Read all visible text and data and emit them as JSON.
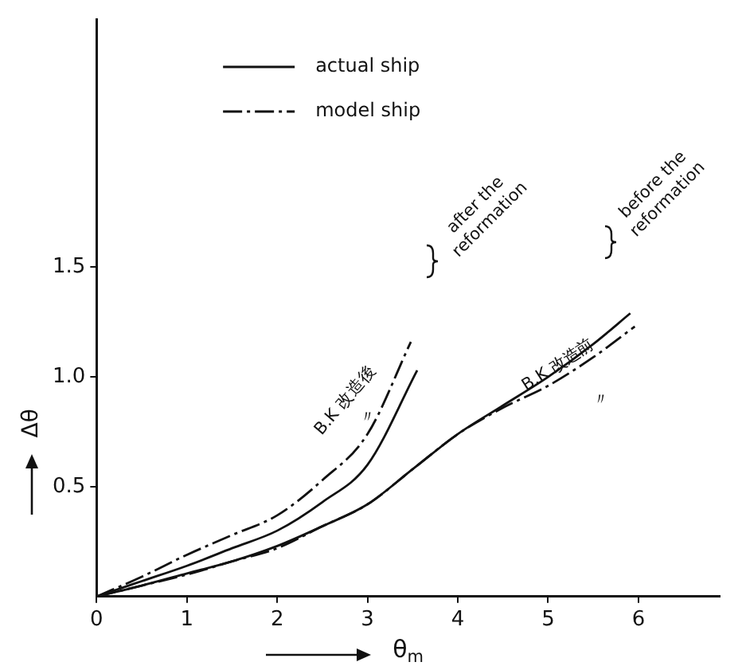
{
  "chart_data": {
    "type": "line",
    "xlabel": "θ$_{m}$",
    "ylabel": "Δθ",
    "xlim": [
      0,
      6.9
    ],
    "xticks": [
      0,
      1,
      2,
      3,
      4,
      5,
      6
    ],
    "ylim": [
      0,
      2.63
    ],
    "yticks": [
      {
        "value": 0.5,
        "label": "0.5"
      },
      {
        "value": 1,
        "label": "1.0"
      },
      {
        "value": 1.5,
        "label": "1.5"
      }
    ],
    "grid": false,
    "legend": "top",
    "tick_labels": "xy",
    "marker": "none",
    "series": [
      {
        "name": "actual ship",
        "color": "#111111",
        "line_style": "solid",
        "x": [
          0,
          0.5,
          1,
          1.5,
          2,
          2.5,
          3,
          3.55
        ],
        "values": [
          0,
          0.07,
          0.14,
          0.22,
          0.3,
          0.43,
          0.6,
          1.03
        ]
      },
      {
        "name": "model ship",
        "color": "#111111",
        "line_style": "dashed",
        "x": [
          0,
          0.5,
          1,
          1.5,
          2,
          2.5,
          3,
          3.48
        ],
        "values": [
          0,
          0.09,
          0.19,
          0.28,
          0.37,
          0.53,
          0.74,
          1.16
        ]
      },
      {
        "color": "#111111",
        "line_style": "solid",
        "x": [
          0,
          0.5,
          1,
          1.5,
          2,
          2.5,
          3,
          3.5,
          4,
          4.5,
          5,
          5.5,
          5.91
        ],
        "values": [
          0,
          0.05,
          0.105,
          0.16,
          0.23,
          0.32,
          0.42,
          0.58,
          0.74,
          0.87,
          1,
          1.15,
          1.29
        ]
      },
      {
        "color": "#111111",
        "line_style": "dashed",
        "x": [
          0,
          0.5,
          1,
          1.5,
          2,
          2.5,
          3,
          3.5,
          4,
          4.5,
          5,
          5.5,
          5.96
        ],
        "values": [
          0,
          0.05,
          0.1,
          0.16,
          0.22,
          0.32,
          0.42,
          0.58,
          0.74,
          0.86,
          0.96,
          1.09,
          1.23
        ]
      }
    ],
    "annotations": [
      "B.K 改造後",
      "〃",
      "after the reformation",
      "B.K 改造前",
      "〃",
      "before the reformation"
    ]
  }
}
